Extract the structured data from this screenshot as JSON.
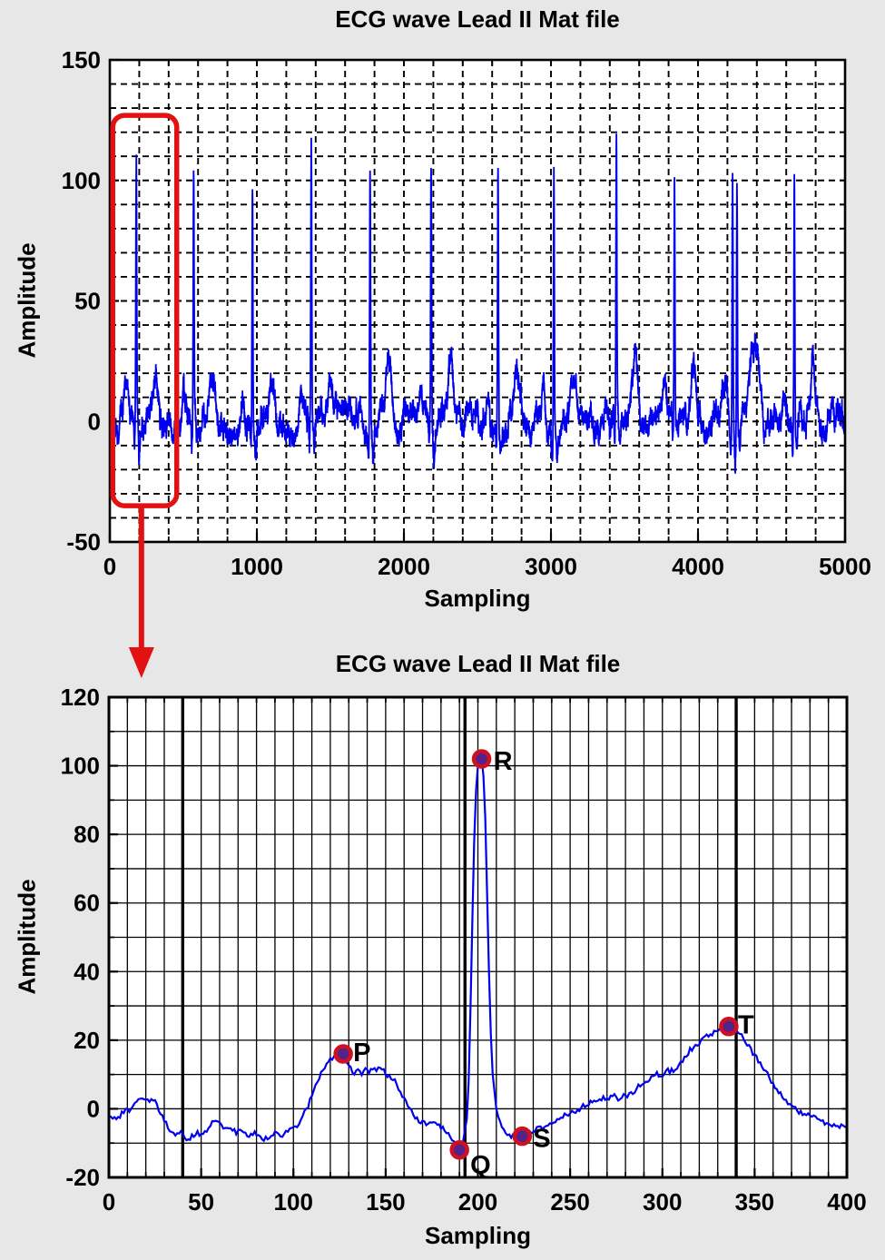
{
  "page": {
    "background": "#e7e7e7",
    "plot_background": "#ffffff"
  },
  "styles": {
    "line_color": "#0000ee",
    "grid_color": "#000000",
    "annotation_color": "#e31212",
    "marker_fill": "#552288",
    "marker_ring": "#cf1020",
    "text_color": "#000000"
  },
  "chart_data": [
    {
      "id": "ecg-overview",
      "type": "line",
      "title": "ECG wave Lead II Mat file",
      "xlabel": "Sampling",
      "ylabel": "Amplitude",
      "xlim": [
        0,
        5000
      ],
      "ylim": [
        -50,
        150
      ],
      "x_ticks": [
        0,
        1000,
        2000,
        3000,
        4000,
        5000
      ],
      "y_ticks": [
        150,
        100,
        50,
        0,
        -50
      ],
      "grid": {
        "style": "dashed",
        "x_step": 200,
        "y_step": 10
      },
      "series": [
        {
          "name": "ECG Lead II",
          "description": "Noisy ECG trace, baseline roughly -20 to +30 with P and T bumps between tall R spikes"
        }
      ],
      "r_peaks": {
        "x": [
          180,
          570,
          970,
          1370,
          1770,
          2185,
          2640,
          3020,
          3445,
          3840,
          4235,
          4265,
          4655
        ],
        "amplitude": [
          105,
          103,
          98,
          108,
          111,
          105,
          108,
          108,
          113,
          97,
          107,
          105,
          106
        ]
      },
      "annotations": {
        "highlight_box": {
          "x": [
            20,
            455
          ],
          "y": [
            -35,
            127
          ]
        },
        "arrow": {
          "x": 215,
          "points_to": "zoomed single-beat chart below"
        }
      }
    },
    {
      "id": "ecg-zoomed-beat",
      "type": "line",
      "title": "ECG wave Lead II Mat file",
      "xlabel": "Sampling",
      "ylabel": "Amplitude",
      "xlim": [
        0,
        400
      ],
      "ylim": [
        -20,
        120
      ],
      "x_ticks": [
        0,
        50,
        100,
        150,
        200,
        250,
        300,
        350,
        400
      ],
      "y_ticks": [
        120,
        100,
        80,
        60,
        40,
        20,
        0,
        -20
      ],
      "grid": {
        "style": "solid",
        "x_step": 10,
        "y_step": 10
      },
      "emphasis_x": [
        40,
        193,
        340
      ],
      "markers": [
        {
          "label": "P",
          "x": 127,
          "y": 16
        },
        {
          "label": "Q",
          "x": 190,
          "y": -12
        },
        {
          "label": "R",
          "x": 202,
          "y": 102
        },
        {
          "label": "S",
          "x": 224,
          "y": -8
        },
        {
          "label": "T",
          "x": 336,
          "y": 24
        }
      ],
      "waveform": [
        [
          0,
          -2
        ],
        [
          4,
          -3
        ],
        [
          8,
          -1
        ],
        [
          12,
          0
        ],
        [
          15,
          2
        ],
        [
          18,
          3
        ],
        [
          21,
          2
        ],
        [
          24,
          3
        ],
        [
          27,
          0
        ],
        [
          30,
          -3
        ],
        [
          33,
          -6
        ],
        [
          36,
          -8
        ],
        [
          39,
          -7
        ],
        [
          42,
          -9
        ],
        [
          45,
          -8
        ],
        [
          48,
          -7
        ],
        [
          51,
          -8
        ],
        [
          54,
          -5
        ],
        [
          57,
          -3
        ],
        [
          60,
          -4
        ],
        [
          63,
          -6
        ],
        [
          66,
          -5
        ],
        [
          69,
          -7
        ],
        [
          72,
          -6
        ],
        [
          75,
          -8
        ],
        [
          78,
          -7
        ],
        [
          81,
          -8
        ],
        [
          84,
          -9
        ],
        [
          87,
          -8
        ],
        [
          90,
          -7
        ],
        [
          93,
          -8
        ],
        [
          96,
          -7
        ],
        [
          99,
          -6
        ],
        [
          102,
          -5
        ],
        [
          105,
          -2
        ],
        [
          108,
          1
        ],
        [
          111,
          5
        ],
        [
          114,
          9
        ],
        [
          117,
          12
        ],
        [
          120,
          14
        ],
        [
          123,
          16
        ],
        [
          125,
          15
        ],
        [
          127,
          16
        ],
        [
          129,
          14
        ],
        [
          131,
          12
        ],
        [
          133,
          10
        ],
        [
          135,
          11
        ],
        [
          137,
          10
        ],
        [
          139,
          12
        ],
        [
          141,
          11
        ],
        [
          143,
          12
        ],
        [
          145,
          11
        ],
        [
          147,
          12
        ],
        [
          149,
          11
        ],
        [
          151,
          10
        ],
        [
          153,
          9
        ],
        [
          155,
          8
        ],
        [
          158,
          5
        ],
        [
          161,
          2
        ],
        [
          164,
          -1
        ],
        [
          167,
          -3
        ],
        [
          170,
          -4
        ],
        [
          173,
          -5
        ],
        [
          176,
          -4
        ],
        [
          179,
          -5
        ],
        [
          182,
          -6
        ],
        [
          184,
          -7
        ],
        [
          186,
          -9
        ],
        [
          188,
          -11
        ],
        [
          190,
          -12
        ],
        [
          192,
          -9
        ],
        [
          194,
          -3
        ],
        [
          195,
          8
        ],
        [
          196,
          30
        ],
        [
          197,
          55
        ],
        [
          198,
          78
        ],
        [
          199,
          93
        ],
        [
          200,
          100
        ],
        [
          201,
          102
        ],
        [
          202,
          102
        ],
        [
          203,
          97
        ],
        [
          204,
          85
        ],
        [
          205,
          62
        ],
        [
          206,
          40
        ],
        [
          207,
          22
        ],
        [
          208,
          10
        ],
        [
          210,
          0
        ],
        [
          212,
          -4
        ],
        [
          214,
          -6
        ],
        [
          216,
          -7
        ],
        [
          218,
          -8
        ],
        [
          220,
          -8
        ],
        [
          222,
          -8
        ],
        [
          224,
          -8
        ],
        [
          226,
          -7
        ],
        [
          228,
          -6
        ],
        [
          230,
          -7
        ],
        [
          232,
          -6
        ],
        [
          234,
          -5
        ],
        [
          236,
          -6
        ],
        [
          238,
          -5
        ],
        [
          240,
          -4
        ],
        [
          243,
          -3
        ],
        [
          246,
          -2
        ],
        [
          249,
          -2
        ],
        [
          252,
          -1
        ],
        [
          255,
          0
        ],
        [
          258,
          1
        ],
        [
          261,
          2
        ],
        [
          264,
          2
        ],
        [
          267,
          3
        ],
        [
          270,
          3
        ],
        [
          273,
          4
        ],
        [
          276,
          3
        ],
        [
          279,
          4
        ],
        [
          282,
          4
        ],
        [
          285,
          5
        ],
        [
          288,
          7
        ],
        [
          291,
          8
        ],
        [
          294,
          9
        ],
        [
          297,
          10
        ],
        [
          300,
          10
        ],
        [
          303,
          11
        ],
        [
          306,
          11
        ],
        [
          309,
          13
        ],
        [
          312,
          15
        ],
        [
          315,
          17
        ],
        [
          318,
          18
        ],
        [
          321,
          20
        ],
        [
          324,
          21
        ],
        [
          327,
          22
        ],
        [
          330,
          23
        ],
        [
          333,
          24
        ],
        [
          336,
          24
        ],
        [
          339,
          23
        ],
        [
          342,
          22
        ],
        [
          345,
          20
        ],
        [
          348,
          17
        ],
        [
          351,
          15
        ],
        [
          354,
          12
        ],
        [
          357,
          10
        ],
        [
          360,
          7
        ],
        [
          363,
          5
        ],
        [
          366,
          3
        ],
        [
          369,
          1
        ],
        [
          372,
          0
        ],
        [
          375,
          -1
        ],
        [
          378,
          -2
        ],
        [
          381,
          -2
        ],
        [
          384,
          -3
        ],
        [
          387,
          -4
        ],
        [
          390,
          -4
        ],
        [
          393,
          -5
        ],
        [
          396,
          -5
        ],
        [
          400,
          -6
        ]
      ]
    }
  ]
}
